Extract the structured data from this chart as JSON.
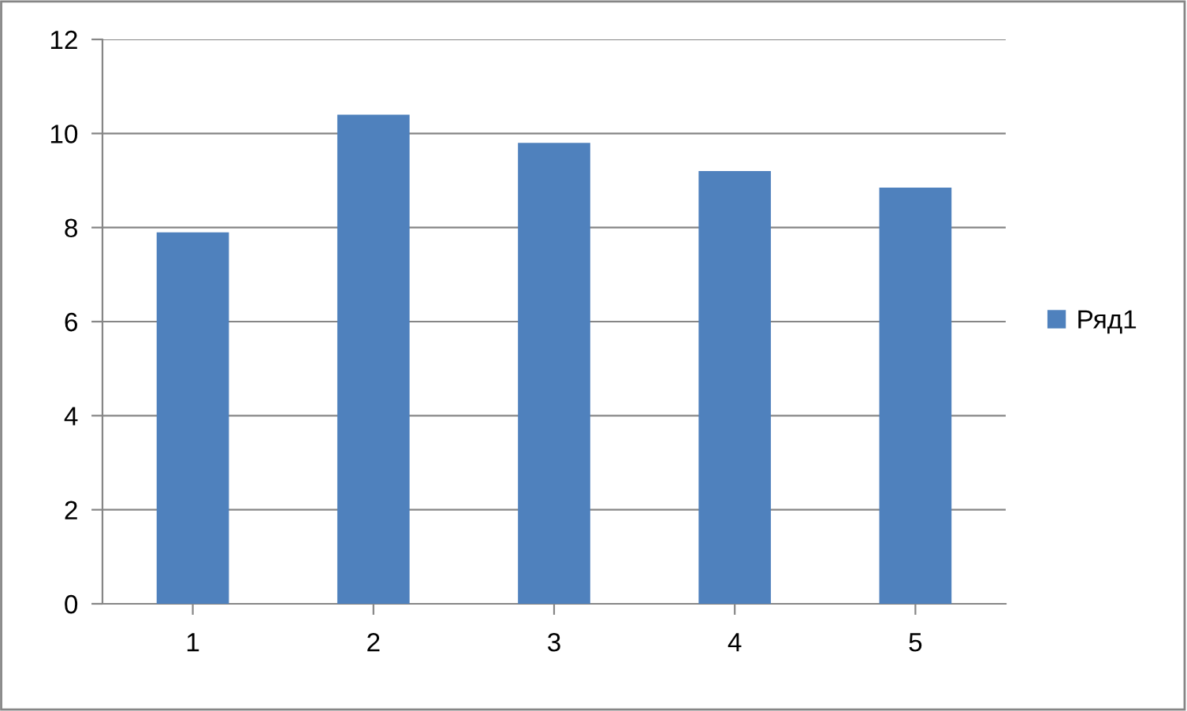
{
  "chart_data": {
    "type": "bar",
    "categories": [
      "1",
      "2",
      "3",
      "4",
      "5"
    ],
    "series": [
      {
        "name": "Ряд1",
        "color": "#4f81bd",
        "values": [
          7.9,
          10.4,
          9.8,
          9.2,
          8.85
        ]
      }
    ],
    "ylim": [
      0,
      12
    ],
    "yticks": [
      0,
      2,
      4,
      6,
      8,
      10,
      12
    ],
    "grid": "y",
    "legend": "right"
  }
}
